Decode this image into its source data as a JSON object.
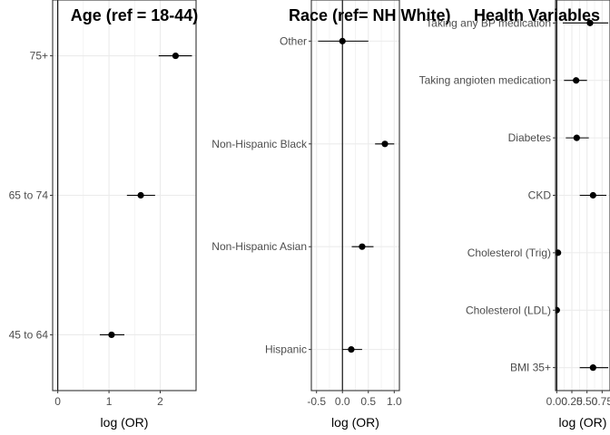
{
  "figure": {
    "description_colors": {
      "point": "#000000",
      "grid": "#ebebeb",
      "border": "#333333",
      "zero_line": "#000000",
      "text": "#4d4d4d"
    }
  },
  "chart_data": [
    {
      "type": "forest",
      "title": "Age (ref = 18-44)",
      "xlabel": "log (OR)",
      "ylabel": "",
      "xlim": [
        -0.1,
        2.7
      ],
      "xticks": [
        0,
        1,
        2
      ],
      "xtick_labels": [
        "0",
        "1",
        "2"
      ],
      "grid": true,
      "categories": [
        "45 to 64",
        "65 to 74",
        "75+"
      ],
      "estimates": [
        1.05,
        1.62,
        2.3
      ],
      "ci_low": [
        0.82,
        1.35,
        1.97
      ],
      "ci_high": [
        1.3,
        1.9,
        2.62
      ]
    },
    {
      "type": "forest",
      "title": "Race (ref= NH White)",
      "xlabel": "log (OR)",
      "ylabel": "",
      "xlim": [
        -0.6,
        1.1
      ],
      "xticks": [
        -0.5,
        0.0,
        0.5,
        1.0
      ],
      "xtick_labels": [
        "-0.5",
        "0.0",
        "0.5",
        "1.0"
      ],
      "grid": true,
      "categories": [
        "Hispanic",
        "Non-Hispanic Asian",
        "Non-Hispanic Black",
        "Other"
      ],
      "estimates": [
        0.17,
        0.38,
        0.82,
        0.0
      ],
      "ci_low": [
        0.0,
        0.18,
        0.63,
        -0.47
      ],
      "ci_high": [
        0.38,
        0.6,
        1.0,
        0.5
      ]
    },
    {
      "type": "forest",
      "title": "Health Variables",
      "xlabel": "log (OR)",
      "ylabel": "",
      "xlim": [
        -0.02,
        0.88
      ],
      "xticks": [
        0.0,
        0.25,
        0.5,
        0.75
      ],
      "xtick_labels": [
        "0.00",
        "0.25",
        "0.50",
        "0.75"
      ],
      "grid": true,
      "categories": [
        "BMI 35+",
        "Cholesterol (LDL)",
        "Cholesterol (Trig)",
        "CKD",
        "Diabetes",
        "Taking angioten medication",
        "Taking any BP medication"
      ],
      "estimates": [
        0.6,
        0.0,
        0.02,
        0.6,
        0.33,
        0.32,
        0.55
      ],
      "ci_low": [
        0.38,
        -0.02,
        0.0,
        0.38,
        0.15,
        0.12,
        0.1
      ],
      "ci_high": [
        0.85,
        0.02,
        0.04,
        0.82,
        0.53,
        0.5,
        0.85
      ]
    }
  ]
}
